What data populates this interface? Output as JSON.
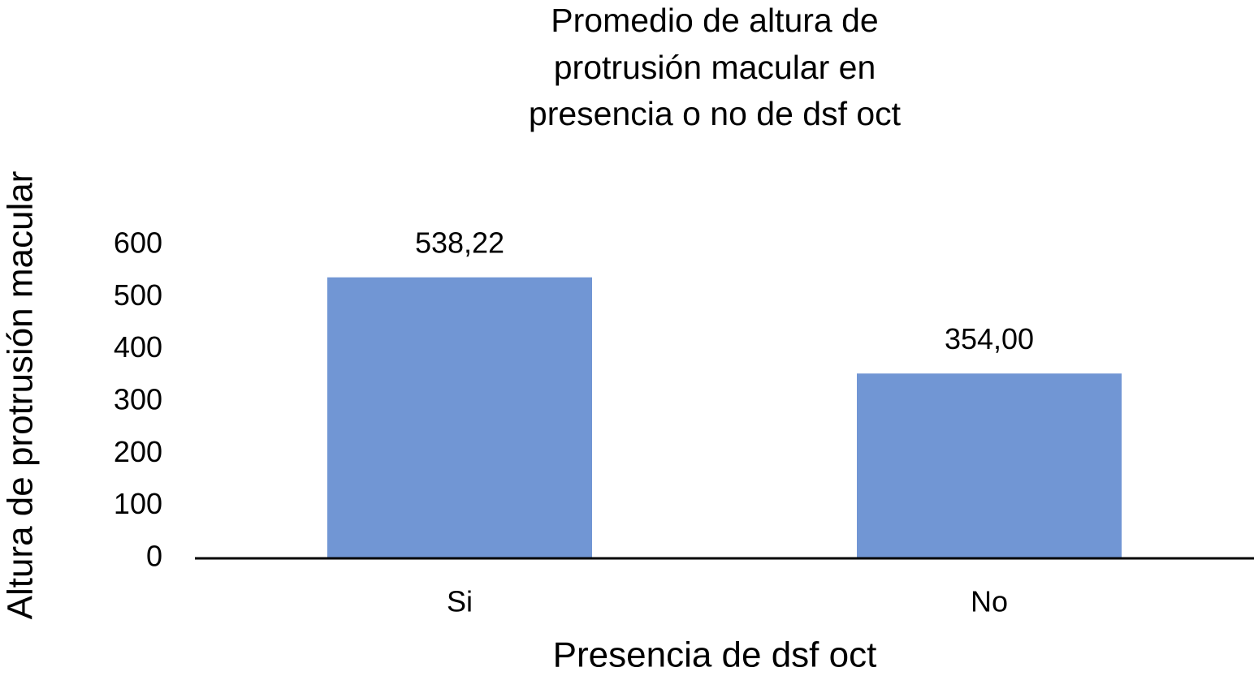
{
  "chart_data": {
    "type": "bar",
    "title": [
      "Promedio de altura de",
      "protrusión macular en",
      "presencia o no de dsf oct"
    ],
    "x_label": "Presencia de dsf oct",
    "y_label": "Altura de protrusión macular",
    "categories": [
      "Si",
      "No"
    ],
    "values": [
      538.22,
      354
    ],
    "value_labels": [
      "538,22",
      "354,00"
    ],
    "color": "#7196d4",
    "ylim": [
      0,
      600
    ],
    "yticks": [
      0,
      100,
      200,
      300,
      400,
      500,
      600
    ],
    "grid": false
  }
}
